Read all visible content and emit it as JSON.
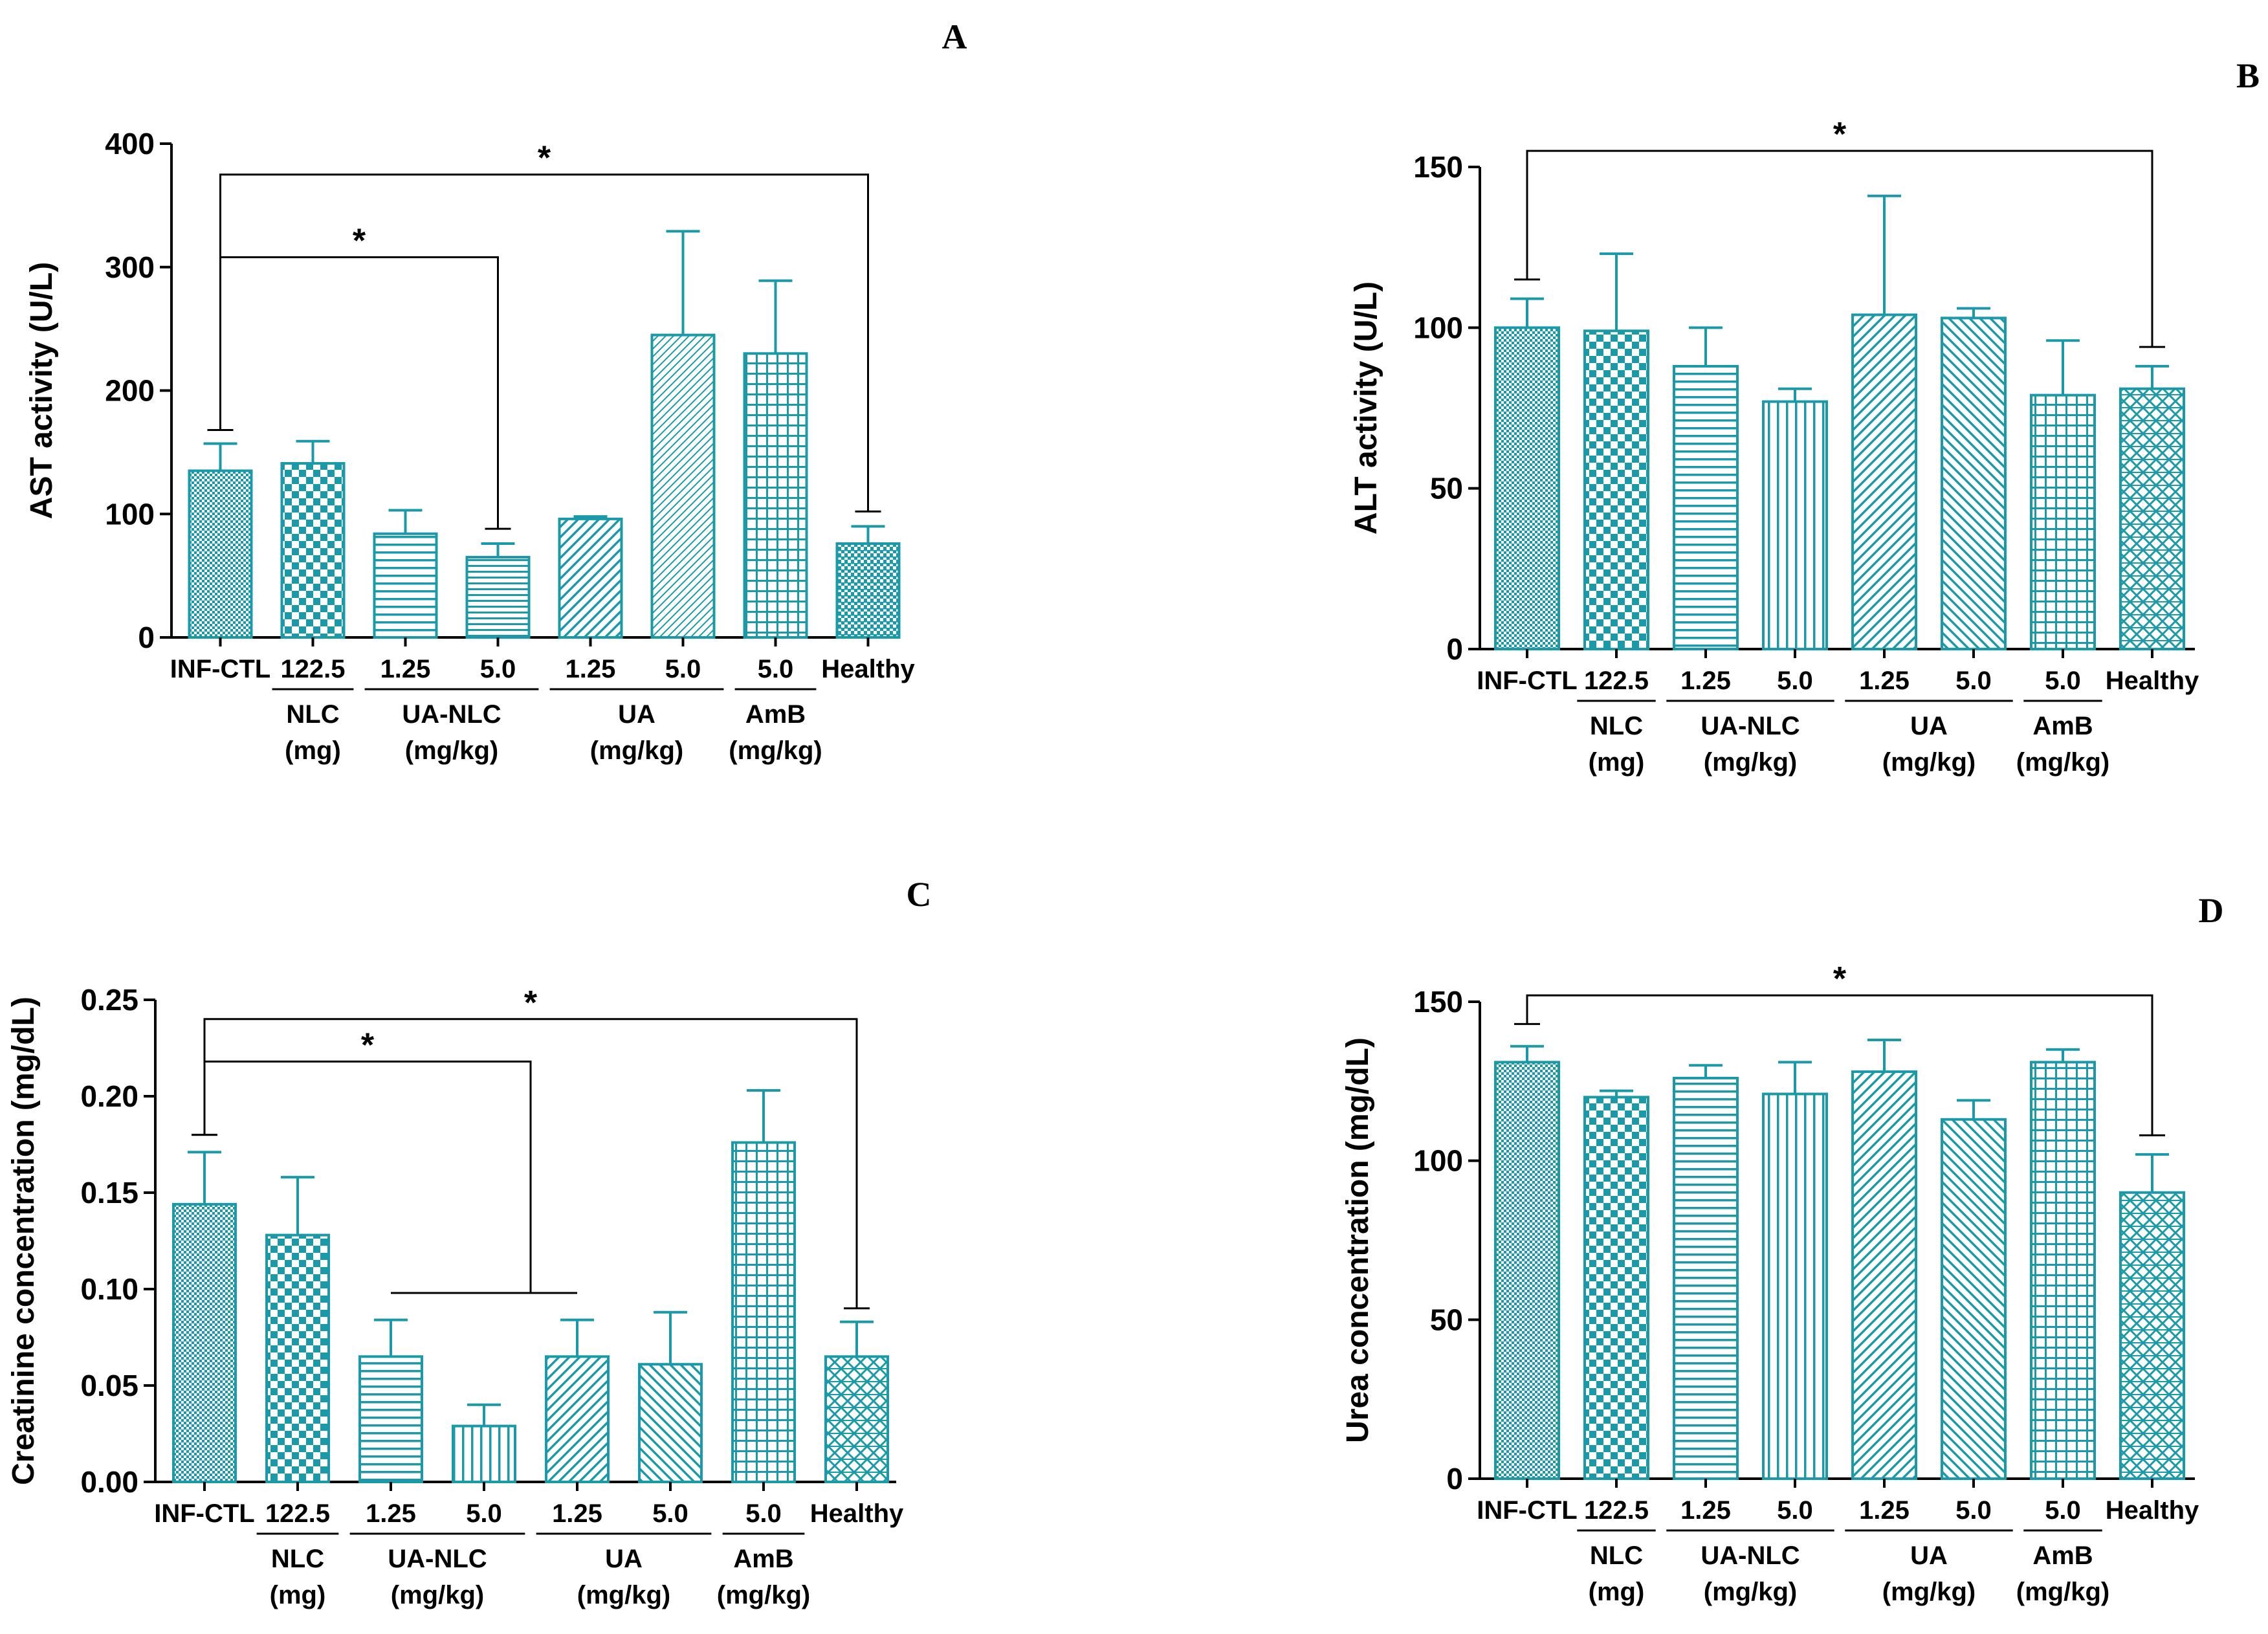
{
  "colors": {
    "bar": "#1a9aa8",
    "axis": "#000000",
    "bracket": "#000000"
  },
  "chart_data": [
    {
      "type": "bar",
      "panel": "A",
      "ylabel": "AST activity (U/L)",
      "ylim": [
        0,
        400
      ],
      "yticks": [
        "0",
        "100",
        "200",
        "300",
        "400"
      ],
      "categories": [
        "INF-CTL",
        "122.5",
        "1.25",
        "5.0",
        "1.25",
        "5.0",
        "5.0",
        "Healthy"
      ],
      "values": [
        135,
        141,
        84,
        65,
        96,
        245,
        230,
        76
      ],
      "errors": [
        22,
        18,
        19,
        11,
        2,
        84,
        59,
        14
      ],
      "patterns": [
        "tinycheck",
        "check",
        "hlines",
        "hlines2",
        "diagfwd",
        "diagfwd2",
        "grid",
        "tinycheck2"
      ],
      "groups": [
        {
          "name": "NLC",
          "unit": "(mg)",
          "span": [
            1,
            1
          ]
        },
        {
          "name": "UA-NLC",
          "unit": "(mg/kg)",
          "span": [
            2,
            3
          ]
        },
        {
          "name": "UA",
          "unit": "(mg/kg)",
          "span": [
            4,
            5
          ]
        },
        {
          "name": "AmB",
          "unit": "(mg/kg)",
          "span": [
            6,
            6
          ]
        }
      ],
      "significance": [
        {
          "label": "*",
          "from": 0,
          "to": 7,
          "level": 375,
          "from_end": 168,
          "to_end": 102
        },
        {
          "label": "*",
          "from": 0,
          "to": 3,
          "level": 308,
          "from_end": 168,
          "to_end": 88
        }
      ]
    },
    {
      "type": "bar",
      "panel": "B",
      "ylabel": "ALT activity (U/L)",
      "ylim": [
        0,
        150
      ],
      "yticks": [
        "0",
        "50",
        "100",
        "150"
      ],
      "categories": [
        "INF-CTL",
        "122.5",
        "1.25",
        "5.0",
        "1.25",
        "5.0",
        "5.0",
        "Healthy"
      ],
      "values": [
        100,
        99,
        88,
        77,
        104,
        103,
        79,
        81
      ],
      "errors": [
        9,
        24,
        12,
        4,
        37,
        3,
        17,
        7
      ],
      "patterns": [
        "tinycheck",
        "check",
        "hlines",
        "vlines",
        "diagfwd",
        "diagback",
        "grid",
        "weave"
      ],
      "groups": [
        {
          "name": "NLC",
          "unit": "(mg)",
          "span": [
            1,
            1
          ]
        },
        {
          "name": "UA-NLC",
          "unit": "(mg/kg)",
          "span": [
            2,
            3
          ]
        },
        {
          "name": "UA",
          "unit": "(mg/kg)",
          "span": [
            4,
            5
          ]
        },
        {
          "name": "AmB",
          "unit": "(mg/kg)",
          "span": [
            6,
            6
          ]
        }
      ],
      "significance": [
        {
          "label": "*",
          "from": 0,
          "to": 7,
          "level": 155,
          "from_end": 115,
          "to_end": 94
        }
      ]
    },
    {
      "type": "bar",
      "panel": "C",
      "ylabel": "Creatinine concentration (mg/dL)",
      "ylim": [
        0,
        0.25
      ],
      "yticks": [
        "0.00",
        "0.05",
        "0.10",
        "0.15",
        "0.20",
        "0.25"
      ],
      "categories": [
        "INF-CTL",
        "122.5",
        "1.25",
        "5.0",
        "1.25",
        "5.0",
        "5.0",
        "Healthy"
      ],
      "values": [
        0.144,
        0.128,
        0.065,
        0.029,
        0.065,
        0.061,
        0.176,
        0.065
      ],
      "errors": [
        0.027,
        0.03,
        0.019,
        0.011,
        0.019,
        0.027,
        0.027,
        0.018
      ],
      "patterns": [
        "tinycheck",
        "check",
        "hlines",
        "vlines",
        "diagfwd",
        "diagback",
        "grid",
        "weave"
      ],
      "groups": [
        {
          "name": "NLC",
          "unit": "(mg)",
          "span": [
            1,
            1
          ]
        },
        {
          "name": "UA-NLC",
          "unit": "(mg/kg)",
          "span": [
            2,
            3
          ]
        },
        {
          "name": "UA",
          "unit": "(mg/kg)",
          "span": [
            4,
            5
          ]
        },
        {
          "name": "AmB",
          "unit": "(mg/kg)",
          "span": [
            6,
            6
          ]
        }
      ],
      "significance": [
        {
          "label": "*",
          "from": 0,
          "to": 7,
          "level": 0.24,
          "from_end": 0.18,
          "to_end": 0.09
        },
        {
          "label": "*",
          "from": 0,
          "to": 3.5,
          "level": 0.218,
          "from_end": 0.18,
          "to_end": 0.098,
          "bar_from": 2,
          "bar_to": 4
        }
      ]
    },
    {
      "type": "bar",
      "panel": "D",
      "ylabel": "Urea concentration (mg/dL)",
      "ylim": [
        0,
        150
      ],
      "yticks": [
        "0",
        "50",
        "100",
        "150"
      ],
      "categories": [
        "INF-CTL",
        "122.5",
        "1.25",
        "5.0",
        "1.25",
        "5.0",
        "5.0",
        "Healthy"
      ],
      "values": [
        131,
        120,
        126,
        121,
        128,
        113,
        131,
        90
      ],
      "errors": [
        5,
        2,
        4,
        10,
        10,
        6,
        4,
        12
      ],
      "patterns": [
        "tinycheck",
        "check",
        "hlines",
        "vlines",
        "diagfwd",
        "diagback",
        "grid",
        "weave"
      ],
      "groups": [
        {
          "name": "NLC",
          "unit": "(mg)",
          "span": [
            1,
            1
          ]
        },
        {
          "name": "UA-NLC",
          "unit": "(mg/kg)",
          "span": [
            2,
            3
          ]
        },
        {
          "name": "UA",
          "unit": "(mg/kg)",
          "span": [
            4,
            5
          ]
        },
        {
          "name": "AmB",
          "unit": "(mg/kg)",
          "span": [
            6,
            6
          ]
        }
      ],
      "significance": [
        {
          "label": "*",
          "from": 0,
          "to": 7,
          "level": 152,
          "from_end": 143,
          "to_end": 108
        }
      ]
    }
  ]
}
